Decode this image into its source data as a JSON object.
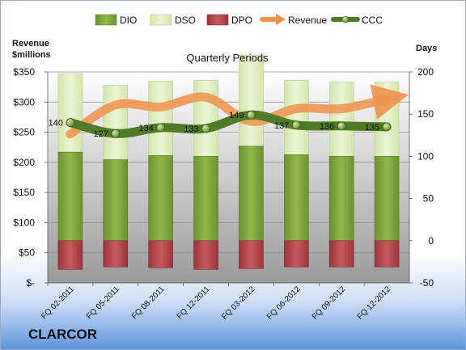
{
  "company": "CLARCOR",
  "chart_data": {
    "type": "bar",
    "title": "Quarterly Periods",
    "left_axis_label": [
      "Revenue",
      "$millions"
    ],
    "right_axis_label": "Days",
    "left_ticks": [
      "$-",
      "$50",
      "$100",
      "$150",
      "$200",
      "$250",
      "$300",
      "$350"
    ],
    "left_ylim": [
      0,
      350
    ],
    "right_ticks": [
      "-50",
      "0",
      "50",
      "100",
      "150",
      "200"
    ],
    "right_ylim": [
      -50,
      200
    ],
    "categories": [
      "FQ 02-2011",
      "FQ 05-2011",
      "FQ 08-2011",
      "FQ 12-2011",
      "FQ 03-2012",
      "FQ 06-2012",
      "FQ 09-2012",
      "FQ 12-2012"
    ],
    "series": [
      {
        "name": "DIO",
        "values": [
          105,
          96,
          101,
          100,
          112,
          102,
          100,
          100
        ]
      },
      {
        "name": "DSO",
        "values": [
          93,
          88,
          88,
          90,
          108,
          88,
          88,
          88
        ]
      },
      {
        "name": "DPO",
        "values": [
          -34,
          -31,
          -32,
          -34,
          -33,
          -31,
          -31,
          -31
        ]
      },
      {
        "name": "Revenue",
        "values": [
          247,
          295,
          292,
          308,
          268,
          289,
          289,
          305
        ]
      },
      {
        "name": "CCC",
        "values": [
          140,
          127,
          134,
          133,
          149,
          137,
          136,
          135
        ]
      }
    ],
    "colors": {
      "DIO": "#7ea63a",
      "DSO": "#dfeec0",
      "DPO": "#b3434a",
      "Revenue": "#f0924c",
      "CCC": "#4f7a28"
    },
    "legend_position": "top"
  }
}
